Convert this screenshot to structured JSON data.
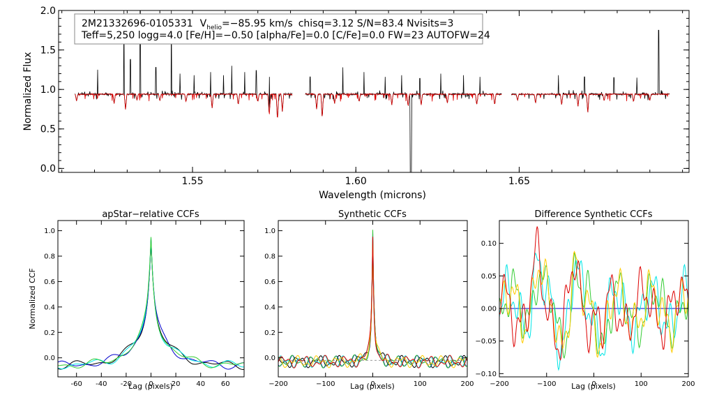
{
  "chart_data": [
    {
      "type": "line",
      "id": "spectrum",
      "title": "",
      "info_line1": {
        "star": "2M21332696-0105331",
        "v_label": "V",
        "v_sub": "helio",
        "v_value": "=−85.95 km/s",
        "rest": "chisq=3.12  S/N=83.4  Nvisits=3"
      },
      "info_line2": "Teff=5,250 logg=4.0 [Fe/H]=−0.50 [alpha/Fe]=0.0 [C/Fe]=0.0 FW=23 AUTOFW=24",
      "xlabel": "Wavelength (microns)",
      "ylabel": "Normalized Flux",
      "xlim": [
        1.509,
        1.702
      ],
      "ylim": [
        -0.05,
        2.0
      ],
      "xticks": [
        1.55,
        1.6,
        1.65
      ],
      "xtick_labels": [
        "1.55",
        "1.60",
        "1.65"
      ],
      "yticks": [
        0.0,
        0.5,
        1.0,
        1.5,
        2.0
      ],
      "ytick_labels": [
        "0.0",
        "0.5",
        "1.0",
        "1.5",
        "2.0"
      ],
      "chips": [
        [
          1.514,
          1.5805
        ],
        [
          1.5845,
          1.6446
        ],
        [
          1.6476,
          1.696
        ]
      ],
      "series": [
        {
          "color": "#000000",
          "level": 0.94,
          "note": "observed spectrum"
        },
        {
          "color": "#dd0000",
          "level": 0.94,
          "note": "model spectrum"
        }
      ],
      "emission_spikes": [
        [
          1.521,
          1.25
        ],
        [
          1.529,
          2.0
        ],
        [
          1.531,
          1.38
        ],
        [
          1.534,
          2.0
        ],
        [
          1.5388,
          1.28
        ],
        [
          1.5435,
          2.0
        ],
        [
          1.5462,
          1.2
        ],
        [
          1.5505,
          1.18
        ],
        [
          1.5555,
          1.22
        ],
        [
          1.5595,
          1.18
        ],
        [
          1.562,
          1.3
        ],
        [
          1.566,
          1.22
        ],
        [
          1.5695,
          1.24
        ],
        [
          1.5735,
          1.16
        ],
        [
          1.586,
          1.16
        ],
        [
          1.596,
          1.28
        ],
        [
          1.6025,
          1.22
        ],
        [
          1.609,
          1.16
        ],
        [
          1.614,
          1.18
        ],
        [
          1.6196,
          1.14
        ],
        [
          1.626,
          1.2
        ],
        [
          1.633,
          1.18
        ],
        [
          1.638,
          1.16
        ],
        [
          1.662,
          1.18
        ],
        [
          1.67,
          1.16
        ],
        [
          1.679,
          1.15
        ],
        [
          1.686,
          1.15
        ],
        [
          1.6927,
          1.75
        ]
      ],
      "absorption_dips": [
        [
          1.5145,
          0.85
        ],
        [
          1.526,
          0.82
        ],
        [
          1.5295,
          0.74
        ],
        [
          1.533,
          0.86
        ],
        [
          1.54,
          0.85
        ],
        [
          1.548,
          0.84
        ],
        [
          1.556,
          0.76
        ],
        [
          1.564,
          0.8
        ],
        [
          1.57,
          0.84
        ],
        [
          1.5735,
          0.66
        ],
        [
          1.576,
          0.6
        ],
        [
          1.5775,
          0.72
        ],
        [
          1.588,
          0.74
        ],
        [
          1.5897,
          0.63
        ],
        [
          1.5935,
          0.82
        ],
        [
          1.601,
          0.84
        ],
        [
          1.611,
          0.8
        ],
        [
          1.616,
          0.78
        ],
        [
          1.62,
          0.8
        ],
        [
          1.628,
          0.82
        ],
        [
          1.637,
          0.8
        ],
        [
          1.6425,
          0.8
        ],
        [
          1.6495,
          0.86
        ],
        [
          1.655,
          0.82
        ],
        [
          1.663,
          0.8
        ],
        [
          1.668,
          0.78
        ],
        [
          1.671,
          0.7
        ],
        [
          1.676,
          0.85
        ],
        [
          1.685,
          0.84
        ],
        [
          1.69,
          0.86
        ]
      ],
      "telluric_gap": {
        "x": 1.6168,
        "y": -0.05
      }
    },
    {
      "type": "line",
      "id": "ccf_apstar",
      "title": "apStar−relative CCFs",
      "xlabel": "Lag (pixels)",
      "ylabel": "Normalized CCF",
      "xlim": [
        -75,
        75
      ],
      "ylim": [
        -0.15,
        1.08
      ],
      "xticks": [
        -60,
        -40,
        -20,
        0,
        20,
        40,
        60
      ],
      "yticks": [
        0.0,
        0.2,
        0.4,
        0.6,
        0.8,
        1.0
      ],
      "ytick_labels": [
        "0.0",
        "0.2",
        "0.4",
        "0.6",
        "0.8",
        "1.0"
      ],
      "peak": 1.0,
      "series": [
        {
          "color": "#000000"
        },
        {
          "color": "#0000cc"
        },
        {
          "color": "#00e5e5"
        },
        {
          "color": "#33cc33"
        }
      ]
    },
    {
      "type": "line",
      "id": "ccf_synthetic",
      "title": "Synthetic CCFs",
      "xlabel": "Lag (pixels)",
      "ylabel": "",
      "xlim": [
        -200,
        200
      ],
      "ylim": [
        -0.15,
        1.08
      ],
      "xticks": [
        -200,
        -100,
        0,
        100,
        200
      ],
      "xtick_labels": [
        "−200",
        "−100",
        "0",
        "100",
        "200"
      ],
      "yticks": [
        0.0,
        0.2,
        0.4,
        0.6,
        0.8,
        1.0
      ],
      "ytick_labels": [
        "0.0",
        "0.2",
        "0.4",
        "0.6",
        "0.8",
        "1.0"
      ],
      "peak": 1.0,
      "baseline": -0.02,
      "series": [
        {
          "color": "#000000"
        },
        {
          "color": "#0000cc"
        },
        {
          "color": "#00e5e5"
        },
        {
          "color": "#33cc33"
        },
        {
          "color": "#ffcc00"
        },
        {
          "color": "#dd0000"
        }
      ]
    },
    {
      "type": "line",
      "id": "ccf_difference",
      "title": "Difference Synthetic CCFs",
      "xlabel": "Lag (pixels)",
      "ylabel": "",
      "xlim": [
        -200,
        200
      ],
      "ylim": [
        -0.105,
        0.135
      ],
      "xticks": [
        -200,
        -100,
        0,
        100,
        200
      ],
      "xtick_labels": [
        "−200",
        "−100",
        "0",
        "100",
        "200"
      ],
      "yticks": [
        -0.1,
        -0.05,
        0.0,
        0.05,
        0.1
      ],
      "ytick_labels": [
        "−0.10",
        "−0.05",
        "0.00",
        "0.05",
        "0.10"
      ],
      "zero_line_color": "#0000cc",
      "series": [
        {
          "color": "#00e5e5"
        },
        {
          "color": "#33cc33"
        },
        {
          "color": "#ffcc00"
        },
        {
          "color": "#dd0000"
        }
      ]
    }
  ]
}
